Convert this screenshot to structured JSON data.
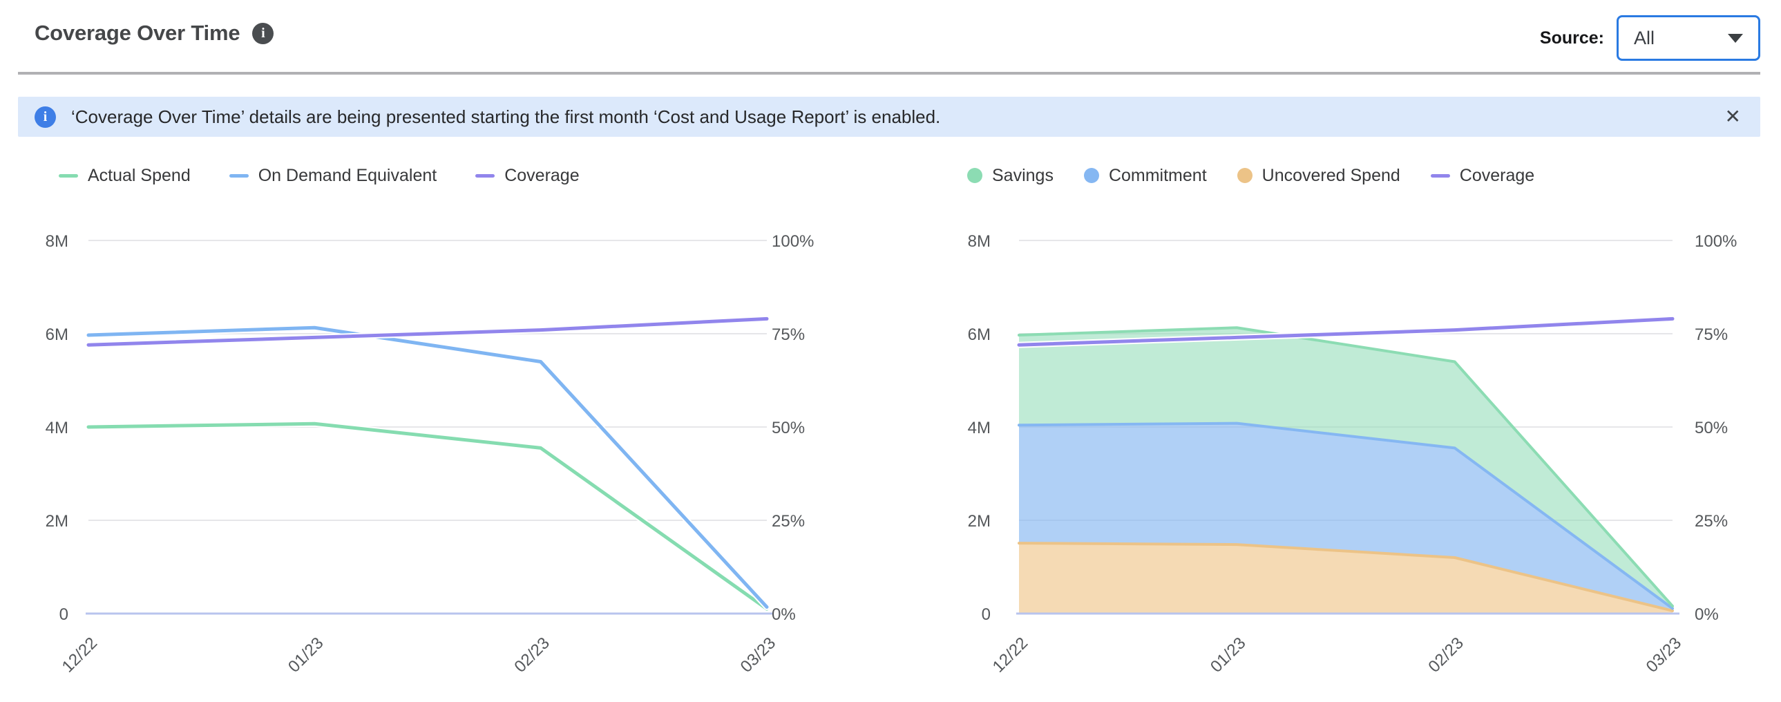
{
  "header": {
    "title": "Coverage Over Time",
    "source_label": "Source:",
    "source_value": "All"
  },
  "banner": {
    "message": "‘Coverage Over Time’ details are being presented starting the first month ‘Cost and Usage Report’ is enabled."
  },
  "icons": {
    "title_info": "i",
    "banner_info": "i",
    "close": "✕",
    "dropdown_caret": "▼"
  },
  "colors": {
    "accent_blue": "#2a7ae2",
    "banner_bg": "#dce9fb",
    "banner_icon": "#3e7ee6",
    "divider": "#b1b1b3",
    "gridline": "#e6e6e9",
    "zero_axis": "#b8c4ee",
    "axis_text": "#55585b"
  },
  "chart_data": [
    {
      "type": "line",
      "title": "Actual Spend vs On Demand Equivalent with Coverage",
      "categories": [
        "12/22",
        "01/23",
        "02/23",
        "03/23"
      ],
      "unit": "M (left axis, spend), % (right axis, coverage)",
      "left_axis": {
        "ticks": [
          "0",
          "2M",
          "4M",
          "6M",
          "8M"
        ],
        "range": [
          0,
          8
        ]
      },
      "right_axis": {
        "ticks": [
          "0%",
          "25%",
          "50%",
          "75%",
          "100%"
        ],
        "range": [
          0,
          100
        ]
      },
      "grid": true,
      "legend_position": "top-left",
      "series": [
        {
          "name": "Actual Spend",
          "axis": "left",
          "marker": "line",
          "color": "#85dcb0",
          "values": [
            4.0,
            4.07,
            3.55,
            0.1
          ]
        },
        {
          "name": "On Demand Equivalent",
          "axis": "left",
          "marker": "line",
          "color": "#7fb5f2",
          "values": [
            5.97,
            6.13,
            5.4,
            0.14
          ]
        },
        {
          "name": "Coverage",
          "axis": "right",
          "marker": "line",
          "color": "#9185ec",
          "values": [
            72,
            74,
            76,
            79
          ]
        }
      ]
    },
    {
      "type": "area",
      "stacked": true,
      "title": "Savings / Commitment / Uncovered Spend stack with Coverage",
      "categories": [
        "12/22",
        "01/23",
        "02/23",
        "03/23"
      ],
      "unit": "M (left axis, spend), % (right axis, coverage)",
      "left_axis": {
        "ticks": [
          "0",
          "2M",
          "4M",
          "6M",
          "8M"
        ],
        "range": [
          0,
          8
        ]
      },
      "right_axis": {
        "ticks": [
          "0%",
          "25%",
          "50%",
          "75%",
          "100%"
        ],
        "range": [
          0,
          100
        ]
      },
      "grid": true,
      "legend_position": "top-left",
      "series": [
        {
          "name": "Savings",
          "axis": "left",
          "marker": "circle",
          "stack_index": 2,
          "color": "#8cdcb3",
          "fill": "rgba(141,219,180,0.55)",
          "values": [
            1.93,
            2.05,
            1.85,
            0.05
          ]
        },
        {
          "name": "Commitment",
          "axis": "left",
          "marker": "circle",
          "stack_index": 1,
          "color": "#85b7f2",
          "fill": "rgba(127,179,241,0.62)",
          "values": [
            2.53,
            2.6,
            2.35,
            0.05
          ]
        },
        {
          "name": "Uncovered Spend",
          "axis": "left",
          "marker": "circle",
          "stack_index": 0,
          "color": "#ecc387",
          "fill": "rgba(238,193,130,0.6)",
          "values": [
            1.51,
            1.48,
            1.2,
            0.06
          ]
        },
        {
          "name": "Coverage",
          "axis": "right",
          "marker": "line",
          "color": "#9185ec",
          "values": [
            72,
            74,
            76,
            79
          ]
        }
      ]
    }
  ]
}
